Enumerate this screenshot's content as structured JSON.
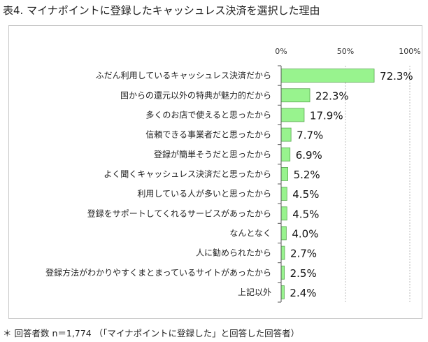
{
  "title": "表4. マイナポイントに登録したキャッシュレス決済を選択した理由",
  "footnote": "＊ 回答者数 n＝1,774 （「マイナポイントに登録した」と回答した回答者）",
  "colors": {
    "bar": "#98f38e",
    "bar_stroke": "#5aa852",
    "grid": "#bdbdbd"
  },
  "chart_data": {
    "type": "bar",
    "orientation": "horizontal",
    "categories": [
      "ふだん利用しているキャッシュレス決済だから",
      "国からの還元以外の特典が魅力的だから",
      "多くのお店で使えると思ったから",
      "信頼できる事業者だと思ったから",
      "登録が簡単そうだと思ったから",
      "よく聞くキャッシュレス決済だと思ったから",
      "利用している人が多いと思ったから",
      "登録をサポートしてくれるサービスがあったから",
      "なんとなく",
      "人に勧められたから",
      "登録方法がわかりやすくまとまっているサイトがあったから",
      "上記以外"
    ],
    "values": [
      72.3,
      22.3,
      17.9,
      7.7,
      6.9,
      5.2,
      4.5,
      4.5,
      4.0,
      2.7,
      2.5,
      2.4
    ],
    "value_labels": [
      "72.3%",
      "22.3%",
      "17.9%",
      "7.7%",
      "6.9%",
      "5.2%",
      "4.5%",
      "4.5%",
      "4.0%",
      "2.7%",
      "2.5%",
      "2.4%"
    ],
    "xlim": [
      0,
      100
    ],
    "xticks": [
      "0%",
      "50%",
      "100%"
    ],
    "grid": true,
    "gridlines": [
      50,
      100
    ]
  }
}
